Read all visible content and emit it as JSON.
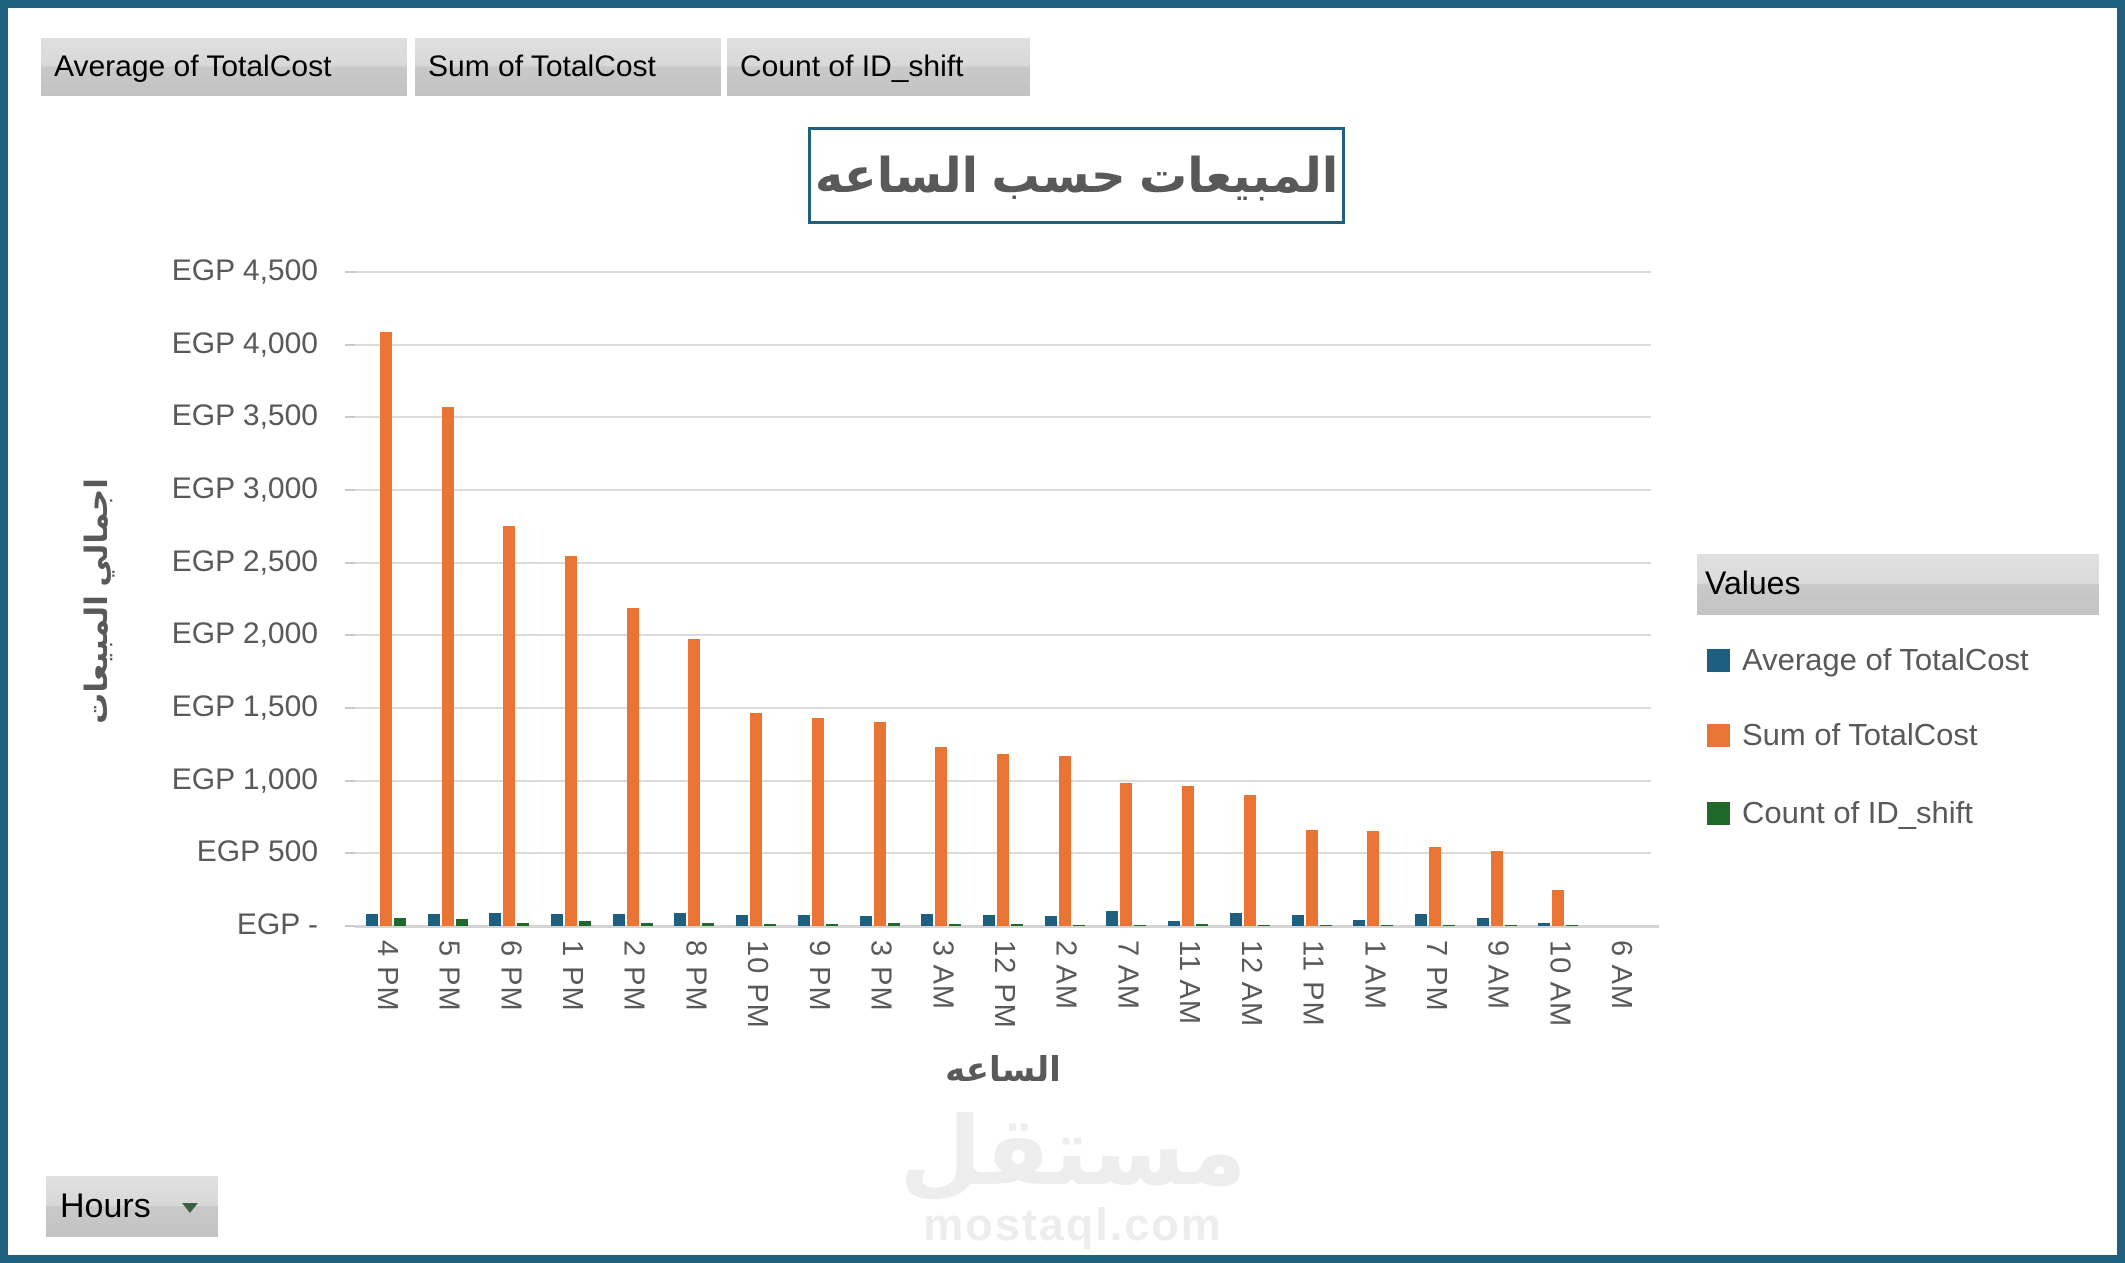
{
  "field_buttons": [
    {
      "label": "Average of TotalCost"
    },
    {
      "label": "Sum of TotalCost"
    },
    {
      "label": "Count of ID_shift"
    }
  ],
  "title": "المبيعات حسب الساعه",
  "filter_button": {
    "label": "Hours"
  },
  "legend": {
    "header": "Values",
    "items": [
      {
        "label": "Average of TotalCost",
        "color": "#1E5F80"
      },
      {
        "label": "Sum of TotalCost",
        "color": "#EA7434"
      },
      {
        "label": "Count of ID_shift",
        "color": "#21692A"
      }
    ]
  },
  "watermark": {
    "logo": "مستقل",
    "domain": "mostaql.com"
  },
  "chart_data": {
    "type": "bar",
    "title": "المبيعات حسب الساعه",
    "xlabel": "الساعه",
    "ylabel": "اجمالي المبيعات",
    "ylim": [
      0,
      4500
    ],
    "ytick_step": 500,
    "ytick_labels": [
      "EGP 4,500",
      "EGP 4,000",
      "EGP 3,500",
      "EGP 3,000",
      "EGP 2,500",
      "EGP 2,000",
      "EGP 1,500",
      "EGP 1,000",
      "EGP 500",
      "EGP -"
    ],
    "grid": true,
    "legend_position": "right",
    "currency_prefix": "EGP",
    "categories": [
      "4 PM",
      "5 PM",
      "6 PM",
      "1 PM",
      "2 PM",
      "8 PM",
      "10 PM",
      "9 PM",
      "3 PM",
      "3 AM",
      "12 PM",
      "2 AM",
      "7 AM",
      "11 AM",
      "12 AM",
      "11 PM",
      "1 AM",
      "7 PM",
      "9 AM",
      "10 AM",
      "6 AM"
    ],
    "series": [
      {
        "name": "Average of TotalCost",
        "color": "#1E5F80",
        "values": [
          85,
          85,
          93,
          80,
          83,
          92,
          78,
          76,
          67,
          80,
          74,
          70,
          105,
          36,
          93,
          73,
          43,
          84,
          55,
          24,
          0
        ]
      },
      {
        "name": "Sum of TotalCost",
        "color": "#EA7434",
        "values": [
          4085,
          3570,
          2750,
          2545,
          2190,
          1975,
          1465,
          1430,
          1405,
          1230,
          1185,
          1170,
          985,
          965,
          905,
          660,
          655,
          545,
          515,
          250,
          0
        ]
      },
      {
        "name": "Count of ID_shift",
        "color": "#21692A",
        "values": [
          55,
          46,
          23,
          34,
          24,
          20,
          15,
          14,
          20,
          12,
          14,
          9,
          4,
          14,
          4,
          5,
          8,
          3,
          5,
          3,
          0
        ]
      }
    ]
  }
}
